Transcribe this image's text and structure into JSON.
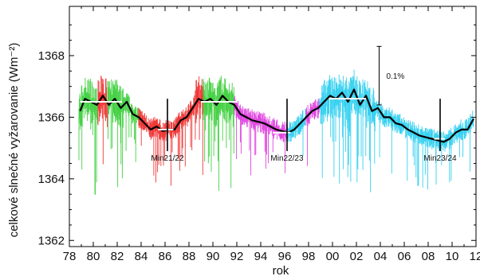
{
  "chart_data": {
    "type": "line",
    "xlabel": "rok",
    "ylabel": "celkové slnečné vyžarovanie  (Wm⁻²)",
    "xlim": [
      1978,
      2012
    ],
    "ylim": [
      1361.8,
      1369.6
    ],
    "x_ticks": [
      {
        "value": 1978,
        "label": "78"
      },
      {
        "value": 1980,
        "label": "80"
      },
      {
        "value": 1982,
        "label": "82"
      },
      {
        "value": 1984,
        "label": "84"
      },
      {
        "value": 1986,
        "label": "86"
      },
      {
        "value": 1988,
        "label": "88"
      },
      {
        "value": 1990,
        "label": "90"
      },
      {
        "value": 1992,
        "label": "92"
      },
      {
        "value": 1994,
        "label": "94"
      },
      {
        "value": 1996,
        "label": "96"
      },
      {
        "value": 1998,
        "label": "98"
      },
      {
        "value": 2000,
        "label": "00"
      },
      {
        "value": 2002,
        "label": "02"
      },
      {
        "value": 2004,
        "label": "04"
      },
      {
        "value": 2006,
        "label": "06"
      },
      {
        "value": 2008,
        "label": "08"
      },
      {
        "value": 2010,
        "label": "10"
      },
      {
        "value": 2012,
        "label": "12"
      }
    ],
    "y_ticks": [
      {
        "value": 1362,
        "label": "1362"
      },
      {
        "value": 1364,
        "label": "1364"
      },
      {
        "value": 1366,
        "label": "1366"
      },
      {
        "value": 1368,
        "label": "1368"
      }
    ],
    "grid": false,
    "series": [
      {
        "role": "daily",
        "segments": [
          {
            "color": "#33cc33",
            "x_range": [
              1978.8,
              1980.4
            ]
          },
          {
            "color": "#ee2222",
            "x_range": [
              1980.4,
              1981.2
            ]
          },
          {
            "color": "#33cc33",
            "x_range": [
              1981.2,
              1983.8
            ]
          },
          {
            "color": "#ee2222",
            "x_range": [
              1983.8,
              1989.2
            ]
          },
          {
            "color": "#33cc33",
            "x_range": [
              1989.2,
              1991.8
            ]
          },
          {
            "color": "#dd33dd",
            "x_range": [
              1991.8,
              1996.2
            ]
          },
          {
            "color": "#22ccee",
            "x_range": [
              1996.2,
              1997.8
            ]
          },
          {
            "color": "#dd33dd",
            "x_range": [
              1997.8,
              1998.9
            ]
          },
          {
            "color": "#22ccee",
            "x_range": [
              1998.9,
              2011.8
            ]
          }
        ]
      },
      {
        "role": "smoothed",
        "color": "#000000",
        "x": [
          1978.9,
          1979.3,
          1979.8,
          1980.3,
          1980.8,
          1981.3,
          1981.8,
          1982.3,
          1982.8,
          1983.3,
          1983.8,
          1984.3,
          1984.8,
          1985.3,
          1985.8,
          1986.3,
          1986.8,
          1987.3,
          1987.8,
          1988.3,
          1988.8,
          1989.3,
          1989.8,
          1990.3,
          1990.8,
          1991.3,
          1991.8,
          1992.3,
          1992.8,
          1993.3,
          1993.8,
          1994.3,
          1994.8,
          1995.3,
          1995.8,
          1996.3,
          1996.8,
          1997.3,
          1997.8,
          1998.3,
          1998.8,
          1999.3,
          1999.8,
          2000.3,
          2000.8,
          2001.3,
          2001.8,
          2002.3,
          2002.8,
          2003.3,
          2003.8,
          2004.3,
          2004.8,
          2005.3,
          2005.8,
          2006.3,
          2006.8,
          2007.3,
          2007.8,
          2008.3,
          2008.8,
          2009.3,
          2009.8,
          2010.3,
          2010.8,
          2011.3,
          2011.8
        ],
        "y": [
          1366.2,
          1366.6,
          1366.5,
          1366.4,
          1366.7,
          1366.4,
          1366.6,
          1366.3,
          1366.5,
          1366.1,
          1366.0,
          1365.8,
          1365.6,
          1365.7,
          1365.55,
          1365.6,
          1365.6,
          1365.9,
          1366.0,
          1366.3,
          1366.6,
          1366.5,
          1366.6,
          1366.4,
          1366.7,
          1366.5,
          1366.4,
          1366.1,
          1366.0,
          1365.9,
          1365.85,
          1365.8,
          1365.7,
          1365.6,
          1365.55,
          1365.5,
          1365.6,
          1365.8,
          1366.0,
          1366.2,
          1366.3,
          1366.5,
          1366.7,
          1366.6,
          1366.8,
          1366.5,
          1366.9,
          1366.4,
          1366.7,
          1366.2,
          1366.3,
          1366.0,
          1366.0,
          1365.8,
          1365.75,
          1365.6,
          1365.5,
          1365.4,
          1365.35,
          1365.3,
          1365.25,
          1365.2,
          1365.3,
          1365.5,
          1365.6,
          1365.6,
          1365.95
        ]
      }
    ],
    "cycle_mean_lines": [
      {
        "x_range": [
          1978.9,
          1982.4
        ],
        "y": 1366.5
      },
      {
        "x_range": [
          1985.4,
          1986.7
        ],
        "y": 1365.6
      },
      {
        "x_range": [
          1989.0,
          1992.0
        ],
        "y": 1366.5
      },
      {
        "x_range": [
          1995.0,
          1996.5
        ],
        "y": 1365.5
      },
      {
        "x_range": [
          1999.7,
          2002.8
        ],
        "y": 1366.6
      },
      {
        "x_range": [
          2008.5,
          2009.4
        ],
        "y": 1365.3
      }
    ],
    "minima_markers": [
      {
        "x": 1986.2,
        "y_range": [
          1364.9,
          1366.6
        ],
        "label": "Min21/22"
      },
      {
        "x": 1996.2,
        "y_range": [
          1364.9,
          1366.6
        ],
        "label": "Min22/23"
      },
      {
        "x": 2009.0,
        "y_range": [
          1364.9,
          1366.6
        ],
        "label": "Min23/24"
      }
    ],
    "scale_bar": {
      "x": 2003.9,
      "y_range": [
        1366.4,
        1368.3
      ],
      "label": "0.1%"
    }
  }
}
